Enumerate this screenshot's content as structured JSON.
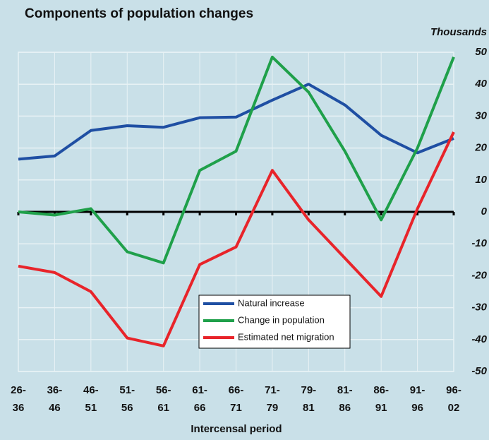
{
  "chart_data": {
    "type": "line",
    "title": "Components of population changes",
    "y_label": "Thousands",
    "x_label": "Intercensal period",
    "categories": [
      "26-\n36",
      "36-\n46",
      "46-\n51",
      "51-\n56",
      "56-\n61",
      "61-\n66",
      "66-\n71",
      "71-\n79",
      "79-\n81",
      "81-\n86",
      "86-\n91",
      "91-\n96",
      "96-\n02"
    ],
    "series": [
      {
        "name": "Natural increase",
        "color": "#1f4fa3",
        "values": [
          16.5,
          17.5,
          25.5,
          27,
          26.5,
          29.5,
          29.7,
          35,
          40,
          33.5,
          24,
          18.5,
          23
        ]
      },
      {
        "name": "Change in population",
        "color": "#1fa04a",
        "values": [
          0,
          -1,
          1,
          -12.5,
          -16,
          13,
          19,
          48.5,
          37.5,
          19,
          -2.5,
          20,
          48.5
        ]
      },
      {
        "name": "Estimated net migration",
        "color": "#e8242a",
        "values": [
          -17,
          -19,
          -25,
          -39.5,
          -42,
          -16.5,
          -11,
          13,
          -2.5,
          -14.5,
          -26.5,
          1,
          25
        ]
      }
    ],
    "ylim": [
      -50,
      50
    ],
    "yticks": [
      -50,
      -40,
      -30,
      -20,
      -10,
      0,
      10,
      20,
      30,
      40,
      50
    ],
    "grid": true
  }
}
